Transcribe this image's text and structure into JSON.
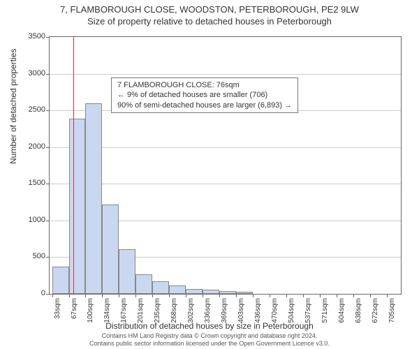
{
  "title_line1": "7, FLAMBOROUGH CLOSE, WOODSTON, PETERBOROUGH, PE2 9LW",
  "title_line2": "Size of property relative to detached houses in Peterborough",
  "ylabel": "Number of detached properties",
  "xlabel": "Distribution of detached houses by size in Peterborough",
  "footer_line1": "Contains HM Land Registry data © Crown copyright and database right 2024.",
  "footer_line2": "Contains public sector information licensed under the Open Government Licence v3.0.",
  "info_box": {
    "line1": "7 FLAMBOROUGH CLOSE: 76sqm",
    "line2": "← 9% of detached houses are smaller (706)",
    "line3": "90% of semi-detached houses are larger (6,893) →"
  },
  "chart": {
    "type": "histogram",
    "ylim": [
      0,
      3500
    ],
    "ytick_step": 500,
    "bar_fill": "#c9d8f0",
    "bar_border": "#888888",
    "grid_color": "#cccccc",
    "border_color": "#666666",
    "highlight_color": "#d03030",
    "highlight_x": 76,
    "x_start": 33,
    "x_step": 33.6,
    "x_bins": 21,
    "x_labels": [
      "33sqm",
      "67sqm",
      "100sqm",
      "134sqm",
      "167sqm",
      "201sqm",
      "235sqm",
      "268sqm",
      "302sqm",
      "336sqm",
      "369sqm",
      "403sqm",
      "436sqm",
      "470sqm",
      "504sqm",
      "537sqm",
      "571sqm",
      "604sqm",
      "638sqm",
      "672sqm",
      "705sqm"
    ],
    "values": [
      370,
      2390,
      2600,
      1220,
      610,
      270,
      170,
      110,
      70,
      60,
      40,
      30,
      0,
      0,
      0,
      0,
      0,
      0,
      0,
      0
    ]
  }
}
